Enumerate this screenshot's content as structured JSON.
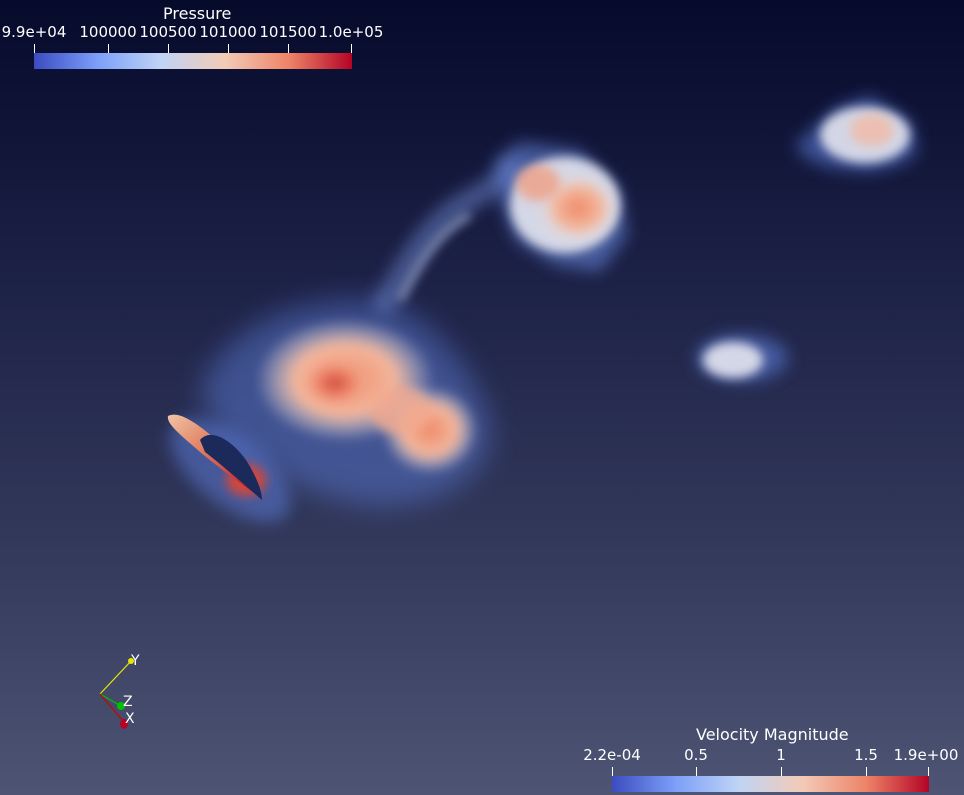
{
  "pressure_legend": {
    "title": "Pressure",
    "ticks": [
      "9.9e+04",
      "100000",
      "100500",
      "101000",
      "101500",
      "1.0e+05"
    ]
  },
  "velocity_legend": {
    "title": "Velocity Magnitude",
    "ticks": [
      "2.2e-04",
      "0.5",
      "1",
      "1.5",
      "1.9e+00"
    ]
  },
  "orientation_axes": {
    "x_label": "X",
    "y_label": "Y",
    "z_label": "Z"
  },
  "colors": {
    "colormap_low": "#3b4cc0",
    "colormap_mid": "#dddddd",
    "colormap_high": "#b40426",
    "background_top": "#060a2b",
    "background_bottom": "#4e5473"
  }
}
